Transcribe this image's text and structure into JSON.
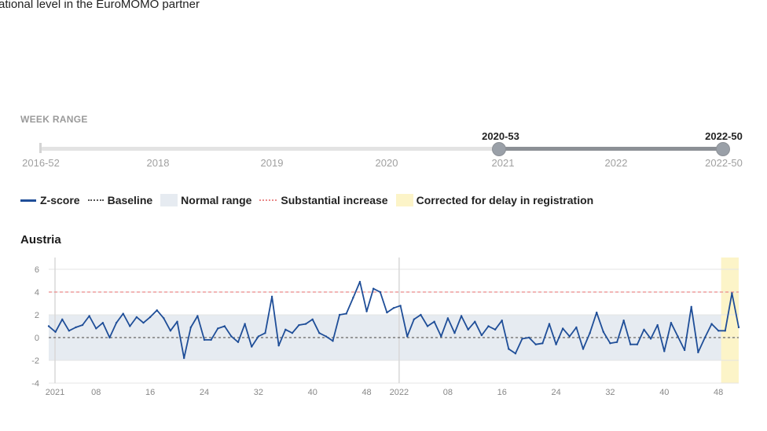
{
  "intro_text": "ational level in the EuroMOMO partner",
  "week_range": {
    "title": "WEEK RANGE",
    "start_label": "2020-53",
    "end_label": "2022-50",
    "ticks": [
      "2016-52",
      "2018",
      "2019",
      "2020",
      "2021",
      "2022",
      "2022-50"
    ]
  },
  "legend": {
    "zscore": "Z-score",
    "baseline": "Baseline",
    "normal_range": "Normal range",
    "substantial_increase": "Substantial increase",
    "corrected": "Corrected for delay in registration"
  },
  "colors": {
    "zscore": "#1f4e98",
    "normal_range": "#e6ebf1",
    "substantial": "#ea8a8a",
    "corrected": "#fcf4c8",
    "slider_active": "#8c9096"
  },
  "chart_data": {
    "type": "line",
    "title": "Austria",
    "xlabel": "",
    "ylabel": "",
    "ylim": [
      -4,
      7
    ],
    "yticks": [
      -4,
      -2,
      0,
      2,
      4,
      6
    ],
    "xtick_labels": [
      "2021",
      "08",
      "16",
      "24",
      "32",
      "40",
      "48",
      "2022",
      "08",
      "16",
      "24",
      "32",
      "40",
      "48"
    ],
    "baseline": 0,
    "normal_range": [
      -2,
      2
    ],
    "substantial_increase": 4,
    "corrected_weeks": 3,
    "series": [
      {
        "name": "Z-score",
        "values": [
          1.0,
          0.5,
          1.6,
          0.6,
          0.9,
          1.1,
          1.9,
          0.8,
          1.3,
          0.0,
          1.3,
          2.1,
          1.0,
          1.8,
          1.3,
          1.8,
          2.4,
          1.7,
          0.6,
          1.4,
          -1.8,
          0.9,
          1.9,
          -0.2,
          -0.2,
          0.8,
          1.0,
          0.1,
          -0.4,
          1.2,
          -0.8,
          0.1,
          0.4,
          3.6,
          -0.7,
          0.7,
          0.4,
          1.1,
          1.2,
          1.6,
          0.4,
          0.1,
          -0.3,
          2.0,
          2.1,
          3.5,
          4.9,
          2.3,
          4.3,
          4.0,
          2.2,
          2.6,
          2.8,
          0.1,
          1.6,
          2.0,
          1.0,
          1.4,
          0.1,
          1.7,
          0.4,
          1.9,
          0.7,
          1.4,
          0.2,
          1.0,
          0.7,
          1.5,
          -1.0,
          -1.4,
          -0.1,
          0.0,
          -0.6,
          -0.5,
          1.2,
          -0.6,
          0.8,
          0.1,
          0.9,
          -1.0,
          0.4,
          2.2,
          0.5,
          -0.5,
          -0.4,
          1.5,
          -0.6,
          -0.6,
          0.7,
          -0.1,
          1.1,
          -1.2,
          1.3,
          0.1,
          -1.1,
          2.7,
          -1.3,
          0.0,
          1.2,
          0.6,
          0.6,
          3.9,
          0.9
        ]
      }
    ]
  }
}
